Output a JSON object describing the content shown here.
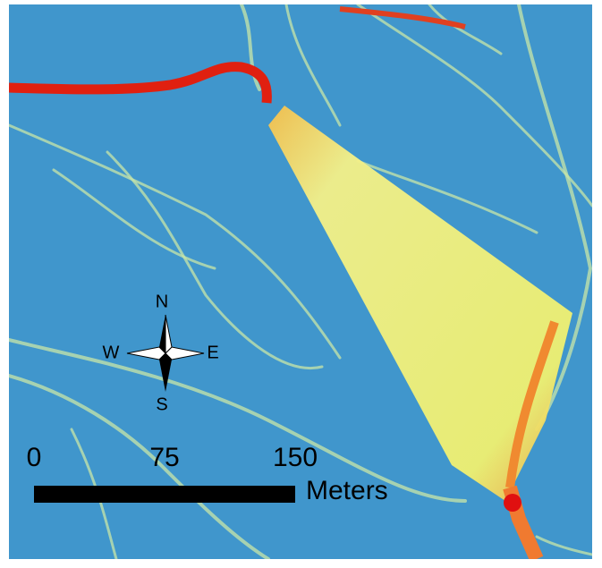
{
  "compass": {
    "north": "N",
    "east": "E",
    "south": "S",
    "west": "W"
  },
  "scale_bar": {
    "ticks": [
      0,
      75,
      150
    ],
    "unit": "Meters"
  }
}
